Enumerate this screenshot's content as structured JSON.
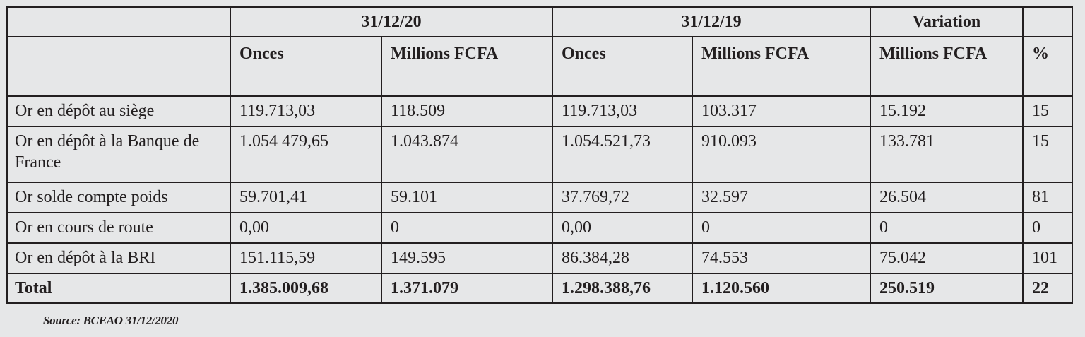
{
  "header": {
    "date_2020": "31/12/20",
    "date_2019": "31/12/19",
    "variation": "Variation"
  },
  "subheader": {
    "onces_2020": "Onces",
    "millions_2020": "Millions FCFA",
    "onces_2019": "Onces",
    "millions_2019": "Millions FCFA",
    "millions_variation": "Millions FCFA",
    "percent": "%"
  },
  "rows": [
    {
      "label": "Or en dépôt au siège",
      "onces_2020": "119.713,03",
      "millions_2020": "118.509",
      "onces_2019": "119.713,03",
      "millions_2019": "103.317",
      "variation_millions": "15.192",
      "variation_pct": "15"
    },
    {
      "label": "Or en dépôt à la Banque de France",
      "onces_2020": "1.054 479,65",
      "millions_2020": "1.043.874",
      "onces_2019": "1.054.521,73",
      "millions_2019": "910.093",
      "variation_millions": "133.781",
      "variation_pct": "15"
    },
    {
      "label": "Or solde compte poids",
      "onces_2020": "59.701,41",
      "millions_2020": "59.101",
      "onces_2019": "37.769,72",
      "millions_2019": "32.597",
      "variation_millions": "26.504",
      "variation_pct": "81"
    },
    {
      "label": "Or en cours de route",
      "onces_2020": "0,00",
      "millions_2020": "0",
      "onces_2019": "0,00",
      "millions_2019": "0",
      "variation_millions": "0",
      "variation_pct": "0"
    },
    {
      "label": "Or en dépôt à la BRI",
      "onces_2020": "151.115,59",
      "millions_2020": "149.595",
      "onces_2019": "86.384,28",
      "millions_2019": "74.553",
      "variation_millions": "75.042",
      "variation_pct": "101"
    }
  ],
  "total": {
    "label": "Total",
    "onces_2020": "1.385.009,68",
    "millions_2020": "1.371.079",
    "onces_2019": "1.298.388,76",
    "millions_2019": "1.120.560",
    "variation_millions": "250.519",
    "variation_pct": "22"
  },
  "source": "Source: BCEAO 31/12/2020"
}
